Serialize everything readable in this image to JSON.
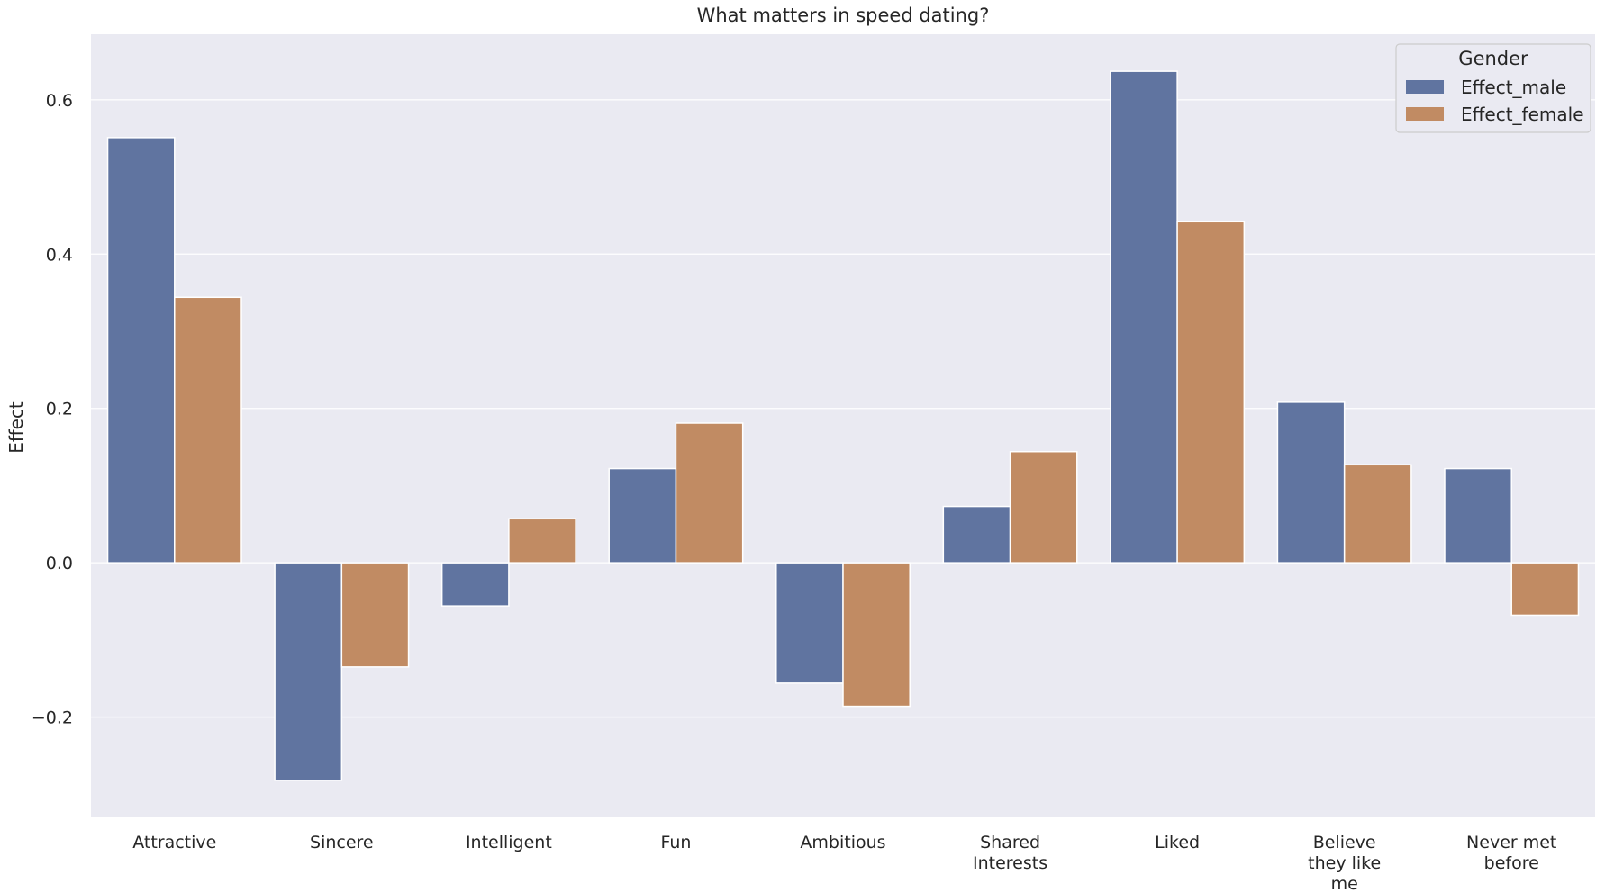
{
  "chart_data": {
    "type": "bar",
    "title": "What matters in speed dating?",
    "xlabel": "",
    "ylabel": "Effect",
    "ylim": [
      -0.33,
      0.685
    ],
    "yticks": [
      -0.2,
      0.0,
      0.2,
      0.4,
      0.6
    ],
    "ytick_labels": [
      "−0.2",
      "0.0",
      "0.2",
      "0.4",
      "0.6"
    ],
    "categories": [
      [
        "Attractive"
      ],
      [
        "Sincere"
      ],
      [
        "Intelligent"
      ],
      [
        "Fun"
      ],
      [
        "Ambitious"
      ],
      [
        "Shared",
        "Interests"
      ],
      [
        "Liked"
      ],
      [
        "Believe",
        "they like",
        "me"
      ],
      [
        "Never met",
        "before"
      ]
    ],
    "series": [
      {
        "name": "Effect_male",
        "color": "#6074a0",
        "values": [
          0.551,
          -0.282,
          -0.056,
          0.122,
          -0.156,
          0.073,
          0.637,
          0.208,
          0.122
        ]
      },
      {
        "name": "Effect_female",
        "color": "#c18b63",
        "values": [
          0.344,
          -0.135,
          0.057,
          0.181,
          -0.186,
          0.144,
          0.442,
          0.127,
          -0.068
        ]
      }
    ],
    "legend": {
      "title": "Gender",
      "placement": "top-right"
    },
    "grid": true,
    "background_color": "#eaeaf2",
    "grid_color": "#ffffff"
  }
}
